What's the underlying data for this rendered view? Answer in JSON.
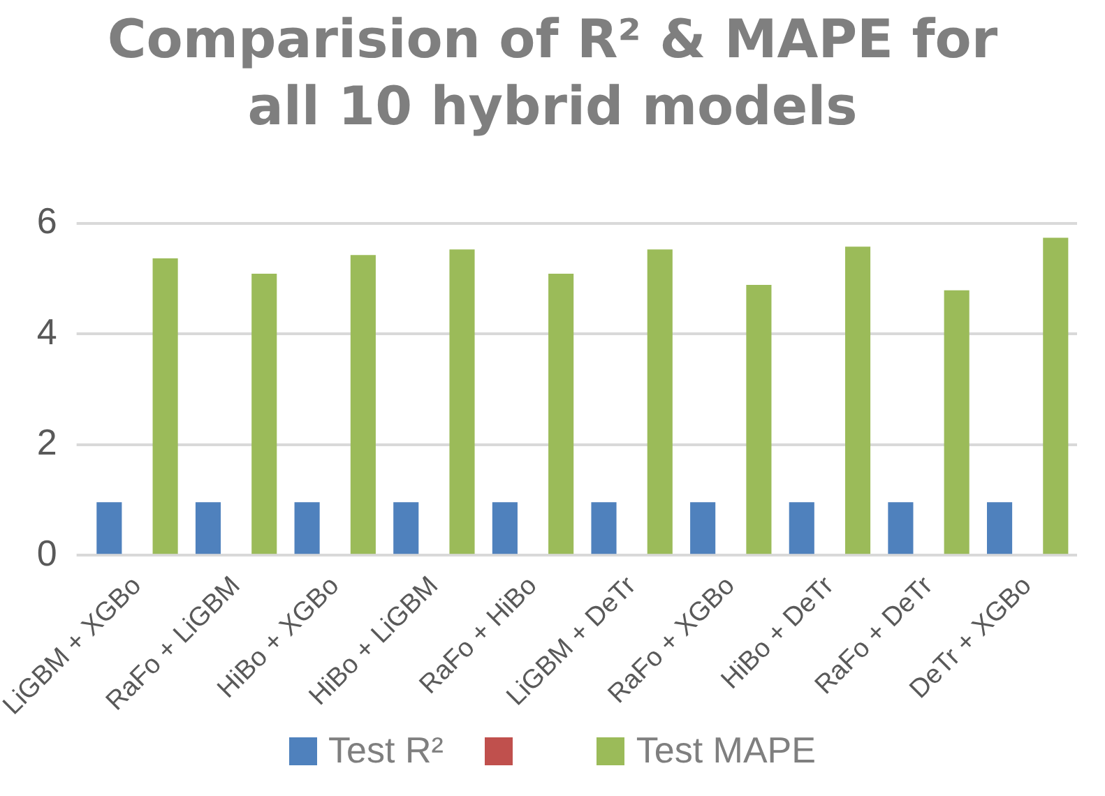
{
  "chart_data": {
    "type": "bar",
    "title": "Comparision of R² & MAPE for all 10 hybrid models",
    "categories": [
      "LiGBM + XGBo",
      "RaFo + LiGBM",
      "HiBo + XGBo",
      "HiBo + LiGBM",
      "RaFo + HiBo",
      "LiGBM + DeTr",
      "RaFo + XGBo",
      "HiBo + DeTr",
      "RaFo + DeTr",
      "DeTr + XGBo"
    ],
    "series": [
      {
        "name": "Test R²",
        "color": "#4f81bd",
        "values": [
          0.96,
          0.96,
          0.96,
          0.96,
          0.96,
          0.96,
          0.96,
          0.96,
          0.96,
          0.96
        ]
      },
      {
        "color": "#c0504d",
        "values": [
          null,
          null,
          null,
          null,
          null,
          null,
          null,
          null,
          null,
          null
        ]
      },
      {
        "name": "Test MAPE",
        "color": "#9bbb59",
        "values": [
          5.37,
          5.09,
          5.43,
          5.53,
          5.09,
          5.53,
          4.89,
          5.58,
          4.79,
          5.74
        ]
      }
    ],
    "ylim": [
      0,
      6
    ],
    "yticks": [
      0,
      2,
      4,
      6
    ],
    "grid": "y",
    "legend": "bottom"
  }
}
